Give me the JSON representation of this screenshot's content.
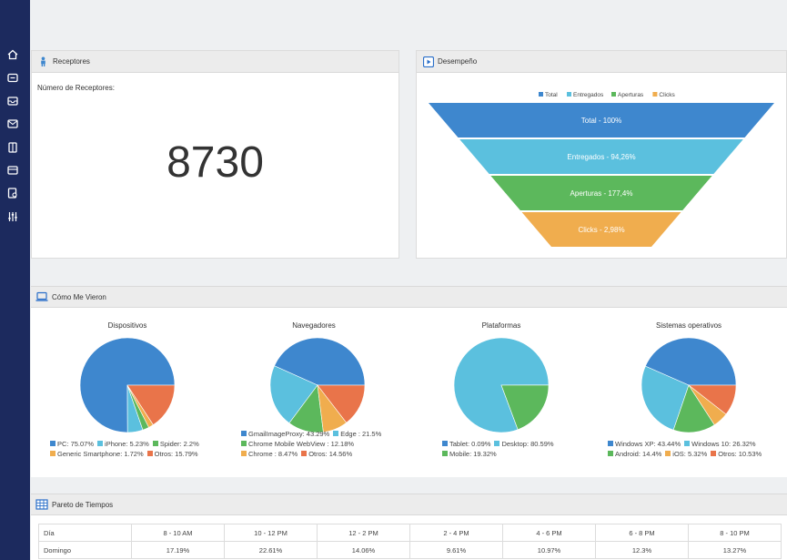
{
  "sidebar": {
    "items": [
      {
        "icon": "home-icon"
      },
      {
        "icon": "chat-icon"
      },
      {
        "icon": "inbox-icon"
      },
      {
        "icon": "mail-icon"
      },
      {
        "icon": "document-icon"
      },
      {
        "icon": "archive-icon"
      },
      {
        "icon": "report-search-icon"
      },
      {
        "icon": "sliders-icon"
      }
    ]
  },
  "receptores": {
    "title": "Receptores",
    "label": "Número de Receptores:",
    "value": "8730"
  },
  "desempeno": {
    "title": "Desempeño",
    "legend": [
      {
        "label": "Total",
        "color": "#3e87ce"
      },
      {
        "label": "Entregados",
        "color": "#5bc0de"
      },
      {
        "label": "Aperturas",
        "color": "#5cb85c"
      },
      {
        "label": "Clicks",
        "color": "#f0ad4e"
      }
    ],
    "chart_data": {
      "type": "funnel",
      "stages": [
        {
          "label": "Total - 100%",
          "color": "#3e87ce"
        },
        {
          "label": "Entregados - 94,26%",
          "color": "#5bc0de"
        },
        {
          "label": "Aperturas - 177,4%",
          "color": "#5cb85c"
        },
        {
          "label": "Clicks - 2,98%",
          "color": "#f0ad4e"
        }
      ]
    }
  },
  "como_me_vieron": {
    "title": "Cómo Me Vieron",
    "chart_data": [
      {
        "type": "pie",
        "title": "Dispositivos",
        "slices": [
          {
            "name": "PC",
            "value": 75.07,
            "label": "PC: 75.07%",
            "color": "#3e87ce"
          },
          {
            "name": "iPhone",
            "value": 5.23,
            "label": "iPhone: 5.23%",
            "color": "#5bc0de"
          },
          {
            "name": "Spider",
            "value": 2.2,
            "label": "Spider: 2.2%",
            "color": "#5cb85c"
          },
          {
            "name": "Generic Smartphone",
            "value": 1.72,
            "label": "Generic Smartphone: 1.72%",
            "color": "#f0ad4e"
          },
          {
            "name": "Otros",
            "value": 15.79,
            "label": "Otros: 15.79%",
            "color": "#e9744a"
          }
        ]
      },
      {
        "type": "pie",
        "title": "Navegadores",
        "slices": [
          {
            "name": "GmailImageProxy",
            "value": 43.29,
            "label": "GmailImageProxy: 43.29%",
            "color": "#3e87ce"
          },
          {
            "name": "Edge",
            "value": 21.5,
            "label": "Edge : 21.5%",
            "color": "#5bc0de"
          },
          {
            "name": "Chrome Mobile WebView",
            "value": 12.18,
            "label": "Chrome Mobile WebView : 12.18%",
            "color": "#5cb85c"
          },
          {
            "name": "Chrome",
            "value": 8.47,
            "label": "Chrome : 8.47%",
            "color": "#f0ad4e"
          },
          {
            "name": "Otros",
            "value": 14.56,
            "label": "Otros: 14.56%",
            "color": "#e9744a"
          }
        ]
      },
      {
        "type": "pie",
        "title": "Plataformas",
        "slices": [
          {
            "name": "Tablet",
            "value": 0.09,
            "label": "Tablet: 0.09%",
            "color": "#3e87ce"
          },
          {
            "name": "Desktop",
            "value": 80.59,
            "label": "Desktop: 80.59%",
            "color": "#5bc0de"
          },
          {
            "name": "Mobile",
            "value": 19.32,
            "label": "Mobile: 19.32%",
            "color": "#5cb85c"
          }
        ]
      },
      {
        "type": "pie",
        "title": "Sistemas operativos",
        "slices": [
          {
            "name": "Windows XP",
            "value": 43.44,
            "label": "Windows XP: 43.44%",
            "color": "#3e87ce"
          },
          {
            "name": "Windows 10",
            "value": 26.32,
            "label": "Windows 10: 26.32%",
            "color": "#5bc0de"
          },
          {
            "name": "Android",
            "value": 14.4,
            "label": "Android: 14.4%",
            "color": "#5cb85c"
          },
          {
            "name": "iOS",
            "value": 5.32,
            "label": "iOS: 5.32%",
            "color": "#f0ad4e"
          },
          {
            "name": "Otros",
            "value": 10.53,
            "label": "Otros: 10.53%",
            "color": "#e9744a"
          }
        ]
      }
    ]
  },
  "pareto": {
    "title": "Pareto de Tiempos",
    "columns": [
      "Día",
      "8 - 10 AM",
      "10 - 12 PM",
      "12 - 2 PM",
      "2 - 4 PM",
      "4 - 6 PM",
      "6 - 8 PM",
      "8 - 10 PM"
    ],
    "rows": [
      [
        "Domingo",
        "17.19%",
        "22.61%",
        "14.06%",
        "9.61%",
        "10.97%",
        "12.3%",
        "13.27%"
      ]
    ]
  }
}
